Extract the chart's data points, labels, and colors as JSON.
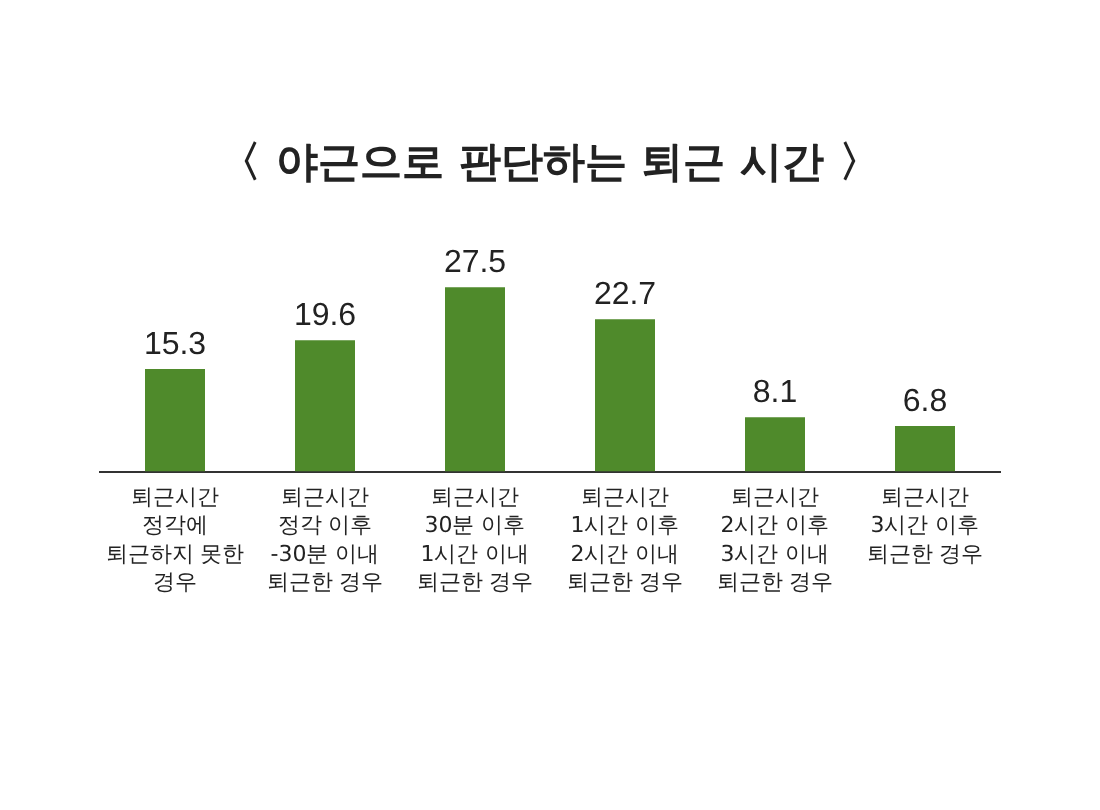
{
  "chart_data": {
    "type": "bar",
    "title": "〈 야근으로 판단하는 퇴근 시간 〉",
    "categories": [
      "퇴근시간\n정각에\n퇴근하지 못한\n경우",
      "퇴근시간\n정각 이후\n-30분 이내\n퇴근한 경우",
      "퇴근시간\n30분 이후\n1시간 이내\n퇴근한 경우",
      "퇴근시간\n1시간 이후\n2시간 이내\n퇴근한 경우",
      "퇴근시간\n2시간 이후\n3시간 이내\n퇴근한 경우",
      "퇴근시간\n3시간 이후\n퇴근한 경우"
    ],
    "values": [
      15.3,
      19.6,
      27.5,
      22.7,
      8.1,
      6.8
    ],
    "color": "#4f8a2b",
    "data_labels": true,
    "grid": false,
    "legend": false
  }
}
